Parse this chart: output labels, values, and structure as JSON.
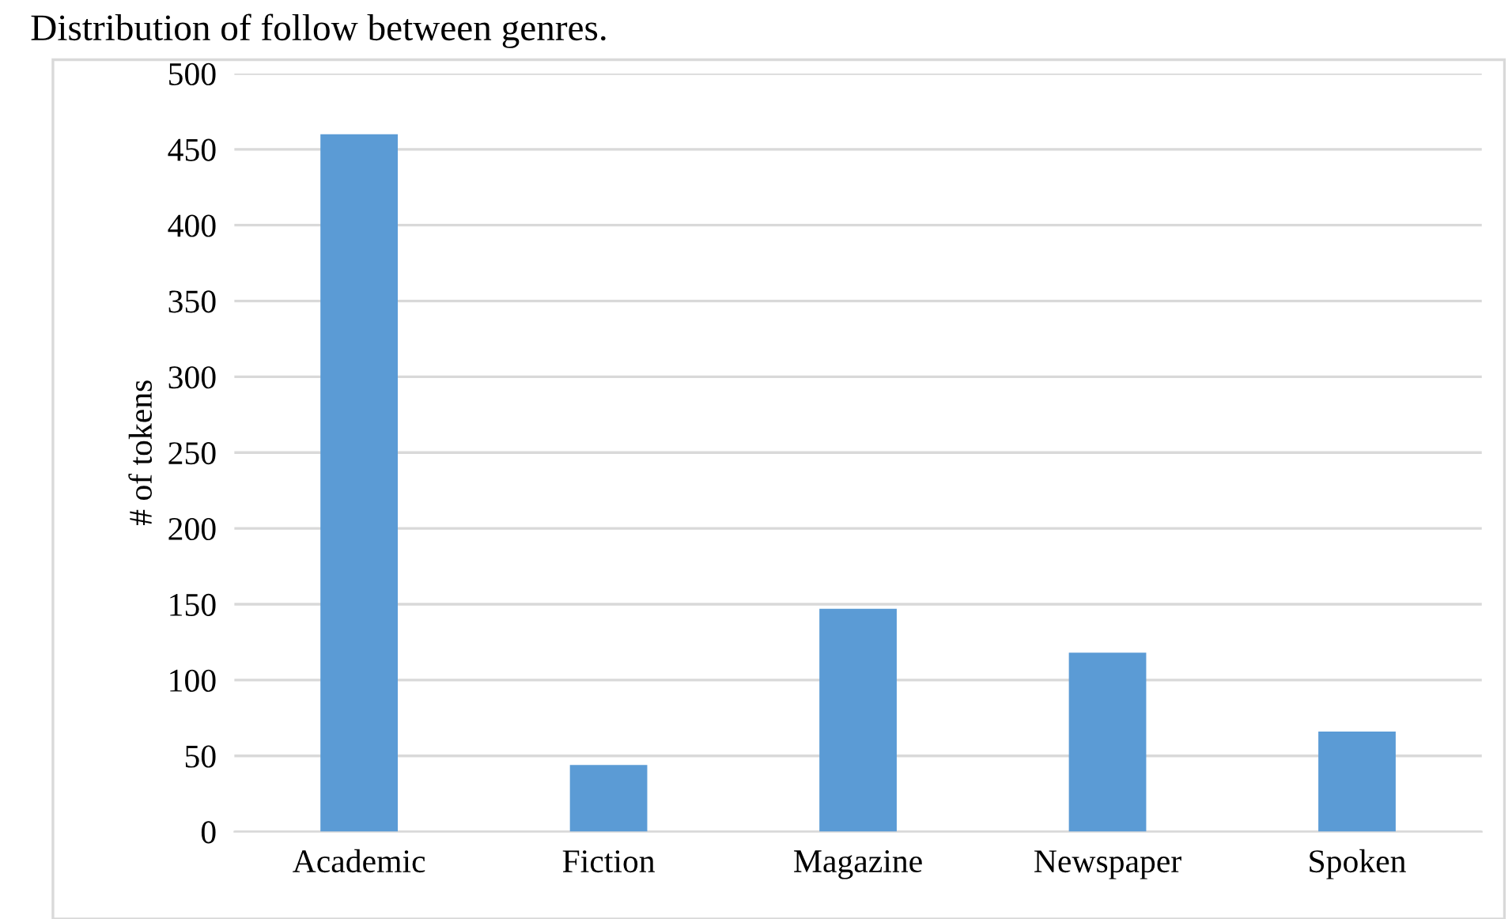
{
  "chart_data": {
    "type": "bar",
    "title": "Distribution of follow between genres.",
    "ylabel": "# of tokens",
    "categories": [
      "Academic",
      "Fiction",
      "Magazine",
      "Newspaper",
      "Spoken"
    ],
    "values": [
      460,
      44,
      147,
      118,
      66
    ],
    "color": "#5b9bd5",
    "ylim": [
      0,
      500
    ],
    "yticks": [
      0,
      50,
      100,
      150,
      200,
      250,
      300,
      350,
      400,
      450,
      500
    ],
    "grid": "y",
    "legend": false
  }
}
